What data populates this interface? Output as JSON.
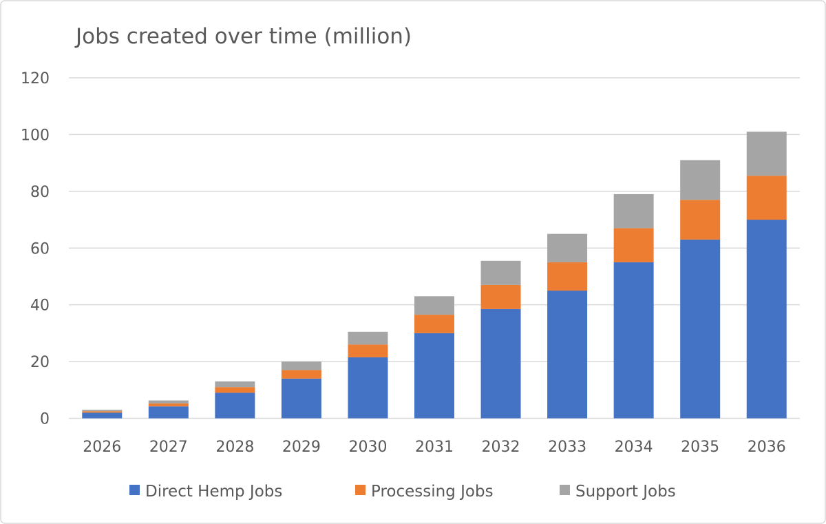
{
  "chart_data": {
    "type": "bar",
    "stacked": true,
    "title": "Jobs created over time (million)",
    "xlabel": "",
    "ylabel": "",
    "ylim": [
      0,
      120
    ],
    "yticks": [
      0,
      20,
      40,
      60,
      80,
      100,
      120
    ],
    "grid": true,
    "legend_position": "bottom",
    "categories": [
      "2026",
      "2027",
      "2028",
      "2029",
      "2030",
      "2031",
      "2032",
      "2033",
      "2034",
      "2035",
      "2036"
    ],
    "series": [
      {
        "name": "Direct Hemp Jobs",
        "color": "#4472C4",
        "values": [
          2,
          4.2,
          9,
          14,
          21.5,
          30,
          38.5,
          45,
          55,
          63,
          70
        ]
      },
      {
        "name": "Processing Jobs",
        "color": "#ED7D31",
        "values": [
          0.5,
          1.05,
          2,
          3,
          4.5,
          6.5,
          8.5,
          10,
          12,
          14,
          15.5
        ]
      },
      {
        "name": "Support Jobs",
        "color": "#A5A5A5",
        "values": [
          0.5,
          1.05,
          2,
          3,
          4.5,
          6.5,
          8.5,
          10,
          12,
          14,
          15.5
        ]
      }
    ]
  }
}
